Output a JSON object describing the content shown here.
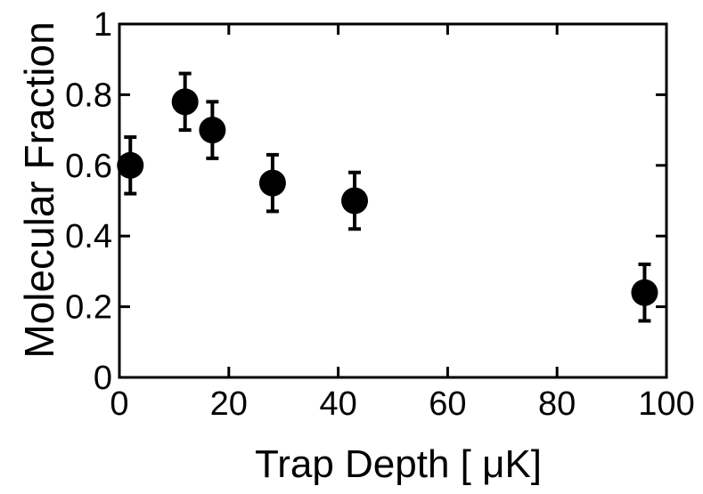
{
  "chart_data": {
    "type": "scatter",
    "title": "",
    "xlabel": "Trap Depth [ μK]",
    "ylabel": "Molecular Fraction",
    "xlim": [
      0,
      100
    ],
    "ylim": [
      0,
      1
    ],
    "x_ticks": [
      0,
      20,
      40,
      60,
      80,
      100
    ],
    "x_tick_labels": [
      "0",
      "20",
      "40",
      "60",
      "80",
      "100"
    ],
    "y_ticks": [
      0,
      0.2,
      0.4,
      0.6,
      0.8,
      1
    ],
    "y_tick_labels": [
      "0",
      "0.2",
      "0.4",
      "0.6",
      "0.8",
      "1"
    ],
    "grid": false,
    "legend": "none",
    "marker": "filled-circle",
    "series": [
      {
        "x": [
          2,
          12,
          17,
          28,
          43,
          96
        ],
        "y": [
          0.6,
          0.78,
          0.7,
          0.55,
          0.5,
          0.24
        ],
        "y_err": [
          0.08,
          0.08,
          0.08,
          0.08,
          0.08,
          0.08
        ]
      }
    ],
    "colors": {
      "marker": "#000000",
      "axis": "#000000",
      "background": "#ffffff"
    }
  }
}
